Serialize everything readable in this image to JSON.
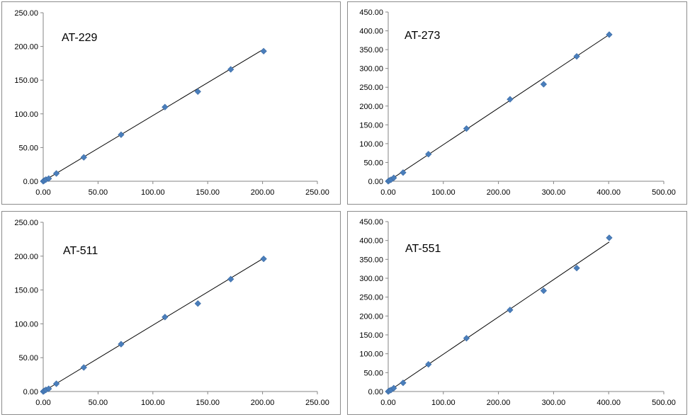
{
  "chart_data": [
    {
      "type": "scatter",
      "title": "AT-229",
      "xlim": [
        0,
        250
      ],
      "ylim": [
        0,
        250
      ],
      "xticks": [
        "0.00",
        "50.00",
        "100.00",
        "150.00",
        "200.00",
        "250.00"
      ],
      "yticks": [
        "0.00",
        "50.00",
        "100.00",
        "150.00",
        "200.00",
        "250.00"
      ],
      "x": [
        0,
        1,
        2.5,
        5,
        12,
        37,
        71,
        111,
        141,
        171,
        201
      ],
      "y": [
        0,
        1,
        2.5,
        4,
        11.5,
        35.5,
        69,
        110,
        133,
        166,
        193
      ],
      "trendline": {
        "x": [
          0,
          201
        ],
        "y": [
          0,
          196
        ]
      },
      "colors": {
        "marker": "#4a7ebb",
        "trendline": "#000000"
      },
      "grid": false
    },
    {
      "type": "scatter",
      "title": "AT-273",
      "xlim": [
        0,
        500
      ],
      "ylim": [
        0,
        450
      ],
      "xticks": [
        "0.00",
        "100.00",
        "200.00",
        "300.00",
        "400.00",
        "500.00"
      ],
      "yticks": [
        "0.00",
        "50.00",
        "100.00",
        "150.00",
        "200.00",
        "250.00",
        "300.00",
        "350.00",
        "400.00",
        "450.00"
      ],
      "x": [
        0,
        2,
        5,
        10,
        27,
        73,
        142,
        221,
        282,
        342,
        401
      ],
      "y": [
        0,
        2,
        4,
        9,
        23,
        72,
        140,
        218,
        258,
        332,
        390
      ],
      "trendline": {
        "x": [
          0,
          401
        ],
        "y": [
          0,
          390
        ]
      },
      "colors": {
        "marker": "#4a7ebb",
        "trendline": "#000000"
      },
      "grid": false
    },
    {
      "type": "scatter",
      "title": "AT-511",
      "xlim": [
        0,
        250
      ],
      "ylim": [
        0,
        250
      ],
      "xticks": [
        "0.00",
        "50.00",
        "100.00",
        "150.00",
        "200.00",
        "250.00"
      ],
      "yticks": [
        "0.00",
        "50.00",
        "100.00",
        "150.00",
        "200.00",
        "250.00"
      ],
      "x": [
        0,
        1,
        2.5,
        5,
        12,
        37,
        71,
        111,
        141,
        171,
        201
      ],
      "y": [
        0,
        1,
        2.5,
        4,
        11.5,
        35.5,
        70,
        110,
        130,
        166,
        196
      ],
      "trendline": {
        "x": [
          0,
          201
        ],
        "y": [
          0,
          197
        ]
      },
      "colors": {
        "marker": "#4a7ebb",
        "trendline": "#000000"
      },
      "grid": false
    },
    {
      "type": "scatter",
      "title": "AT-551",
      "xlim": [
        0,
        500
      ],
      "ylim": [
        0,
        450
      ],
      "xticks": [
        "0.00",
        "100.00",
        "200.00",
        "300.00",
        "400.00",
        "500.00"
      ],
      "yticks": [
        "0.00",
        "50.00",
        "100.00",
        "150.00",
        "200.00",
        "250.00",
        "300.00",
        "350.00",
        "400.00",
        "450.00"
      ],
      "x": [
        0,
        2,
        5,
        10,
        27,
        73,
        142,
        221,
        282,
        342,
        401
      ],
      "y": [
        0,
        2,
        4,
        9,
        23,
        72,
        141,
        216,
        267,
        327,
        407
      ],
      "trendline": {
        "x": [
          0,
          401
        ],
        "y": [
          0,
          396
        ]
      },
      "colors": {
        "marker": "#4a7ebb",
        "trendline": "#000000"
      },
      "grid": false
    }
  ]
}
